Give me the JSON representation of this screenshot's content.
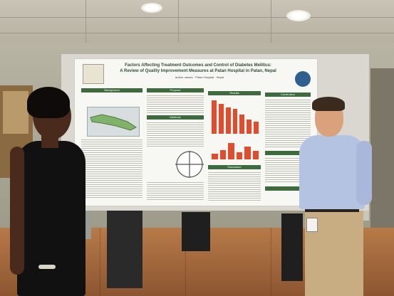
{
  "poster": {
    "title_line1": "Factors Affecting Treatment Outcomes and Control of Diabetes Mellitus:",
    "title_line2": "A Review of Quality Improvement Measures at Patan Hospital in Patan, Nepal",
    "authors": "Author names · Patan Hospital · Nepal",
    "sections": [
      "Background",
      "Purpose",
      "Results",
      "Conclusion",
      "Methods",
      "Discussion"
    ]
  },
  "colors": {
    "poster_header": "#3d6b3d",
    "chart_bars": "#e34b2f",
    "floor": "#b77a48"
  },
  "chart_bars_upper": [
    0.95,
    0.85,
    0.75,
    0.7,
    0.55,
    0.4,
    0.35
  ],
  "chart_bars_lower": [
    0.3,
    0.5,
    0.9,
    0.4,
    0.7,
    0.45
  ]
}
